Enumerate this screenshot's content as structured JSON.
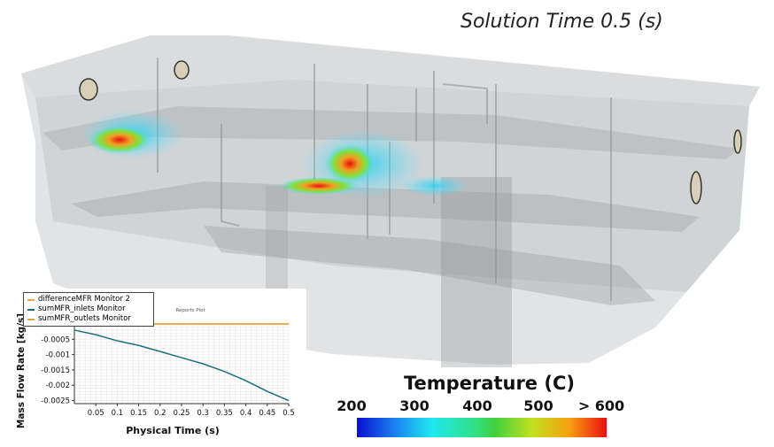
{
  "solution_time": "Solution Time 0.5 (s)",
  "colorbar": {
    "title": "Temperature (C)",
    "ticks": [
      "200",
      "300",
      "400",
      "500",
      "> 600"
    ]
  },
  "plot": {
    "title": "Reports Plot",
    "legend": [
      {
        "label": "differenceMFR Monitor 2",
        "color": "#e8a33a"
      },
      {
        "label": "sumMFR_inlets Monitor",
        "color": "#1f6f7a"
      },
      {
        "label": "sumMFR_outlets Monitor",
        "color": "#e8a33a"
      }
    ]
  },
  "chart_data": {
    "type": "line",
    "title": "Reports Plot",
    "xlabel": "Physical Time (s)",
    "ylabel": "Mass Flow Rate [kg/s]",
    "xlim": [
      0,
      0.5
    ],
    "ylim": [
      -0.0026,
      0
    ],
    "x_ticks": [
      "0.05",
      "0.1",
      "0.15",
      "0.2",
      "0.25",
      "0.3",
      "0.35",
      "0.4",
      "0.45",
      "0.5"
    ],
    "y_ticks": [
      "-0.0005",
      "-0.001",
      "-0.0015",
      "-0.002",
      "-0.0025"
    ],
    "series": [
      {
        "name": "differenceMFR Monitor 2",
        "color": "#e8a33a",
        "x": [
          0,
          0.5
        ],
        "y": [
          0,
          0
        ]
      },
      {
        "name": "sumMFR_inlets Monitor",
        "color": "#1f6f7a",
        "x": [
          0,
          0.05,
          0.1,
          0.15,
          0.2,
          0.25,
          0.3,
          0.35,
          0.4,
          0.45,
          0.5
        ],
        "y": [
          -0.0002,
          -0.00035,
          -0.00055,
          -0.0007,
          -0.0009,
          -0.0011,
          -0.0013,
          -0.00155,
          -0.00185,
          -0.0022,
          -0.0025
        ]
      },
      {
        "name": "sumMFR_outlets Monitor",
        "color": "#e8a33a",
        "x": [
          0,
          0.5
        ],
        "y": [
          0,
          0
        ]
      }
    ]
  }
}
